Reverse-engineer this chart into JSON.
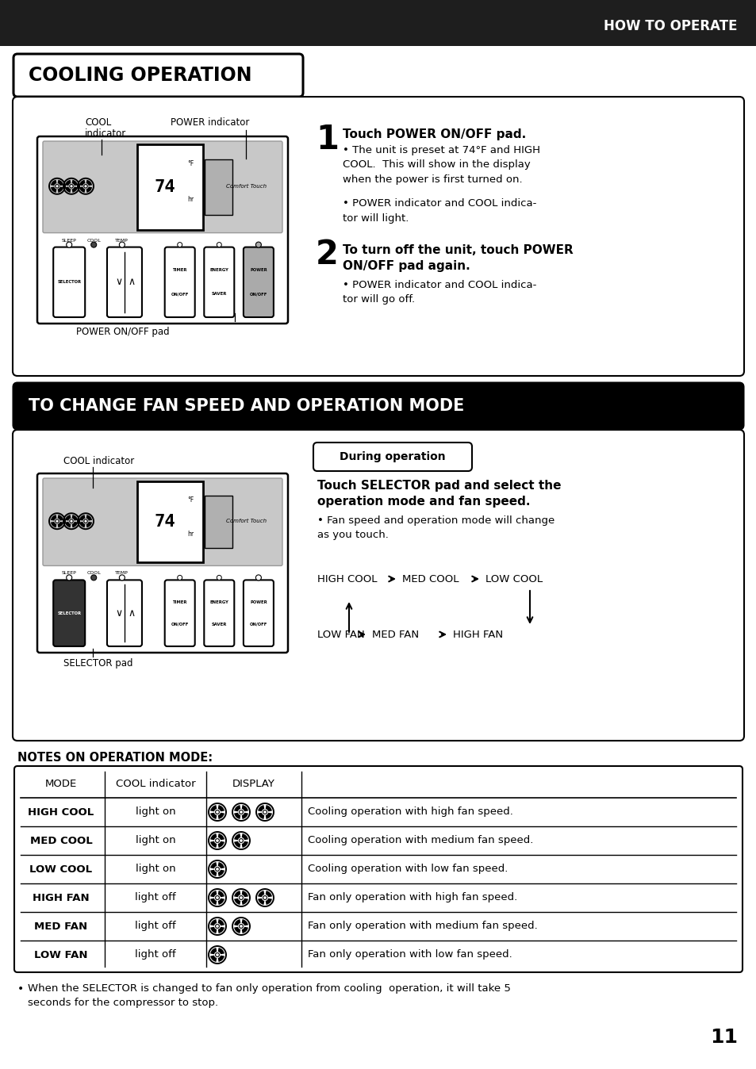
{
  "bg_color": "#ffffff",
  "header_bg": "#1e1e1e",
  "header_text": "HOW TO OPERATE",
  "header_text_color": "#ffffff",
  "section1_title": "COOLING OPERATION",
  "section2_title": "TO CHANGE FAN SPEED AND OPERATION MODE",
  "page_number": "11",
  "step1_num": "1",
  "step1_title": "Touch POWER ON/OFF pad.",
  "step1_b1": "The unit is preset at 74°F and HIGH\nCOOL.  This will show in the display\nwhen the power is first turned on.",
  "step1_b2": "POWER indicator and COOL indica-\ntor will light.",
  "step2_num": "2",
  "step2_title": "To turn off the unit, touch POWER\nON/OFF pad again.",
  "step2_b1": "POWER indicator and COOL indica-\ntor will go off.",
  "during_op": "During operation",
  "sel_bold": "Touch SELECTOR pad and select the\noperation mode and fan speed.",
  "sel_bullet": "Fan speed and operation mode will change\nas you touch.",
  "notes_title": "NOTES ON OPERATION MODE:",
  "cool_lbl1a": "COOL",
  "cool_lbl1b": "indicator",
  "power_ind_lbl": "POWER indicator",
  "power_pad_lbl": "POWER ON/OFF pad",
  "cool_lbl2": "COOL indicator",
  "sel_pad_lbl": "SELECTOR pad",
  "footer_note": "When the SELECTOR is changed to fan only operation from cooling  operation, it will take 5\nseconds for the compressor to stop.",
  "table_modes": [
    "HIGH COOL",
    "MED COOL",
    "LOW COOL",
    "HIGH FAN",
    "MED FAN",
    "LOW FAN"
  ],
  "table_cool": [
    "light on",
    "light on",
    "light on",
    "light off",
    "light off",
    "light off"
  ],
  "table_fans": [
    3,
    2,
    1,
    3,
    2,
    1
  ],
  "table_desc": [
    "Cooling operation with high fan speed.",
    "Cooling operation with medium fan speed.",
    "Cooling operation with low fan speed.",
    "Fan only operation with high fan speed.",
    "Fan only operation with medium fan speed.",
    "Fan only operation with low fan speed."
  ]
}
